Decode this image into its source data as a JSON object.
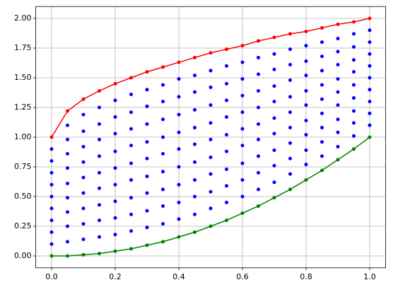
{
  "chart_data": {
    "type": "line",
    "x": [
      0,
      0.05,
      0.1,
      0.15,
      0.2,
      0.25,
      0.3,
      0.35,
      0.4,
      0.45,
      0.5,
      0.55,
      0.6,
      0.65,
      0.7,
      0.75,
      0.8,
      0.85,
      0.9,
      0.95,
      1
    ],
    "series": [
      {
        "color": "#ff0000",
        "values": [
          1,
          1.22,
          1.32,
          1.39,
          1.45,
          1.5,
          1.55,
          1.59,
          1.63,
          1.67,
          1.71,
          1.74,
          1.77,
          1.81,
          1.84,
          1.87,
          1.89,
          1.92,
          1.95,
          1.97,
          2
        ]
      },
      {
        "color": "#008000",
        "values": [
          0,
          0,
          0.01,
          0.02,
          0.04,
          0.06,
          0.09,
          0.12,
          0.16,
          0.2,
          0.25,
          0.3,
          0.36,
          0.42,
          0.49,
          0.56,
          0.64,
          0.72,
          0.81,
          0.9,
          1
        ]
      }
    ],
    "scatter_color": "#0000ff",
    "scatter": [
      {
        "x": 0,
        "values": [
          0.1,
          0.2,
          0.3,
          0.4,
          0.5,
          0.6,
          0.7,
          0.8,
          0.9
        ]
      },
      {
        "x": 0.05,
        "values": [
          0.12,
          0.25,
          0.37,
          0.49,
          0.61,
          0.74,
          0.86,
          0.98,
          1.1
        ]
      },
      {
        "x": 0.1,
        "values": [
          0.14,
          0.27,
          0.4,
          0.53,
          0.66,
          0.79,
          0.92,
          1.05,
          1.19
        ]
      },
      {
        "x": 0.15,
        "values": [
          0.16,
          0.3,
          0.43,
          0.57,
          0.7,
          0.84,
          0.98,
          1.11,
          1.25
        ]
      },
      {
        "x": 0.2,
        "values": [
          0.18,
          0.32,
          0.46,
          0.6,
          0.74,
          0.88,
          1.03,
          1.17,
          1.31
        ]
      },
      {
        "x": 0.25,
        "values": [
          0.21,
          0.35,
          0.49,
          0.64,
          0.78,
          0.93,
          1.07,
          1.21,
          1.36
        ]
      },
      {
        "x": 0.3,
        "values": [
          0.24,
          0.38,
          0.53,
          0.67,
          0.82,
          0.96,
          1.11,
          1.26,
          1.4
        ]
      },
      {
        "x": 0.35,
        "values": [
          0.27,
          0.42,
          0.56,
          0.71,
          0.86,
          1,
          1.15,
          1.3,
          1.44
        ]
      },
      {
        "x": 0.4,
        "values": [
          0.31,
          0.45,
          0.6,
          0.75,
          0.9,
          1.04,
          1.19,
          1.34,
          1.49
        ]
      },
      {
        "x": 0.45,
        "values": [
          0.35,
          0.5,
          0.64,
          0.79,
          0.94,
          1.08,
          1.23,
          1.38,
          1.52
        ]
      },
      {
        "x": 0.5,
        "values": [
          0.4,
          0.54,
          0.69,
          0.83,
          0.98,
          1.12,
          1.27,
          1.42,
          1.56
        ]
      },
      {
        "x": 0.55,
        "values": [
          0.45,
          0.59,
          0.73,
          0.88,
          1.02,
          1.17,
          1.31,
          1.45,
          1.6
        ]
      },
      {
        "x": 0.6,
        "values": [
          0.5,
          0.64,
          0.78,
          0.93,
          1.07,
          1.21,
          1.35,
          1.49,
          1.63
        ]
      },
      {
        "x": 0.65,
        "values": [
          0.56,
          0.7,
          0.84,
          0.98,
          1.11,
          1.25,
          1.39,
          1.53,
          1.67
        ]
      },
      {
        "x": 0.7,
        "values": [
          0.62,
          0.76,
          0.89,
          1.03,
          1.16,
          1.3,
          1.43,
          1.57,
          1.7
        ]
      },
      {
        "x": 0.75,
        "values": [
          0.69,
          0.82,
          0.95,
          1.08,
          1.21,
          1.34,
          1.48,
          1.61,
          1.74
        ]
      },
      {
        "x": 0.8,
        "values": [
          0.77,
          0.89,
          1.02,
          1.14,
          1.27,
          1.39,
          1.52,
          1.64,
          1.77
        ]
      },
      {
        "x": 0.85,
        "values": [
          0.84,
          0.96,
          1.08,
          1.2,
          1.32,
          1.44,
          1.56,
          1.68,
          1.8
        ]
      },
      {
        "x": 0.9,
        "values": [
          0.92,
          1.04,
          1.15,
          1.27,
          1.38,
          1.49,
          1.61,
          1.72,
          1.83
        ]
      },
      {
        "x": 0.95,
        "values": [
          1.01,
          1.12,
          1.22,
          1.33,
          1.44,
          1.55,
          1.65,
          1.76,
          1.87
        ]
      },
      {
        "x": 1,
        "values": [
          1.1,
          1.2,
          1.3,
          1.4,
          1.5,
          1.6,
          1.7,
          1.8,
          1.9
        ]
      }
    ],
    "xlim": [
      -0.05,
      1.05
    ],
    "ylim": [
      -0.1,
      2.1
    ],
    "xticks": [
      {
        "value": 0,
        "label": "0.0"
      },
      {
        "value": 0.2,
        "label": "0.2"
      },
      {
        "value": 0.4,
        "label": "0.4"
      },
      {
        "value": 0.6,
        "label": "0.6"
      },
      {
        "value": 0.8,
        "label": "0.8"
      },
      {
        "value": 1,
        "label": "1.0"
      }
    ],
    "yticks": [
      {
        "value": 0,
        "label": "0.00"
      },
      {
        "value": 0.25,
        "label": "0.25"
      },
      {
        "value": 0.5,
        "label": "0.50"
      },
      {
        "value": 0.75,
        "label": "0.75"
      },
      {
        "value": 1,
        "label": "1.00"
      },
      {
        "value": 1.25,
        "label": "1.25"
      },
      {
        "value": 1.5,
        "label": "1.50"
      },
      {
        "value": 1.75,
        "label": "1.75"
      },
      {
        "value": 2,
        "label": "2.00"
      }
    ],
    "grid": true
  }
}
